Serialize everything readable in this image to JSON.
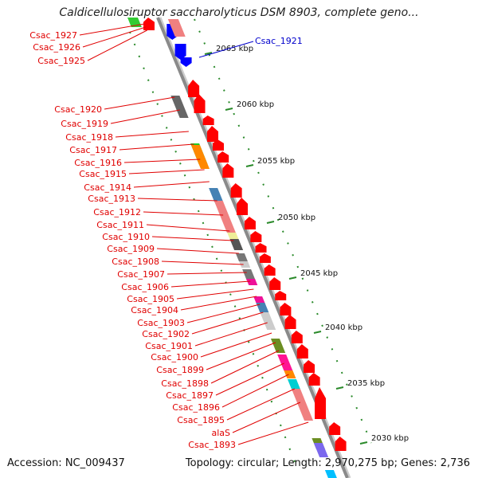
{
  "title": "Caldicellulosiruptor saccharolyticus DSM 8903, complete geno...",
  "footer": {
    "accession": "Accession: NC_009437",
    "summary": "Topology: circular; Length: 2,970,275 bp; Genes: 2,736"
  },
  "colors": {
    "gene_label": "#e00000",
    "highlight_label": "#0000cc",
    "forward_gene": "#ff0000",
    "reverse_gene": "#0000ff",
    "backbone": "#8a8a8a",
    "tick": "#2a8a2a"
  },
  "kbp_ticks": [
    "2065 kbp",
    "2060 kbp",
    "2055 kbp",
    "2050 kbp",
    "2045 kbp",
    "2040 kbp",
    "2035 kbp",
    "2030 kbp"
  ],
  "highlight_gene": "Csac_1921",
  "gene_labels": [
    "Csac_1927",
    "Csac_1926",
    "Csac_1925",
    "Csac_1920",
    "Csac_1919",
    "Csac_1918",
    "Csac_1917",
    "Csac_1916",
    "Csac_1915",
    "Csac_1914",
    "Csac_1913",
    "Csac_1912",
    "Csac_1911",
    "Csac_1910",
    "Csac_1909",
    "Csac_1908",
    "Csac_1907",
    "Csac_1906",
    "Csac_1905",
    "Csac_1904",
    "Csac_1903",
    "Csac_1902",
    "Csac_1901",
    "Csac_1900",
    "Csac_1899",
    "Csac_1898",
    "Csac_1897",
    "Csac_1896",
    "Csac_1895",
    "alaS",
    "Csac_1893"
  ]
}
